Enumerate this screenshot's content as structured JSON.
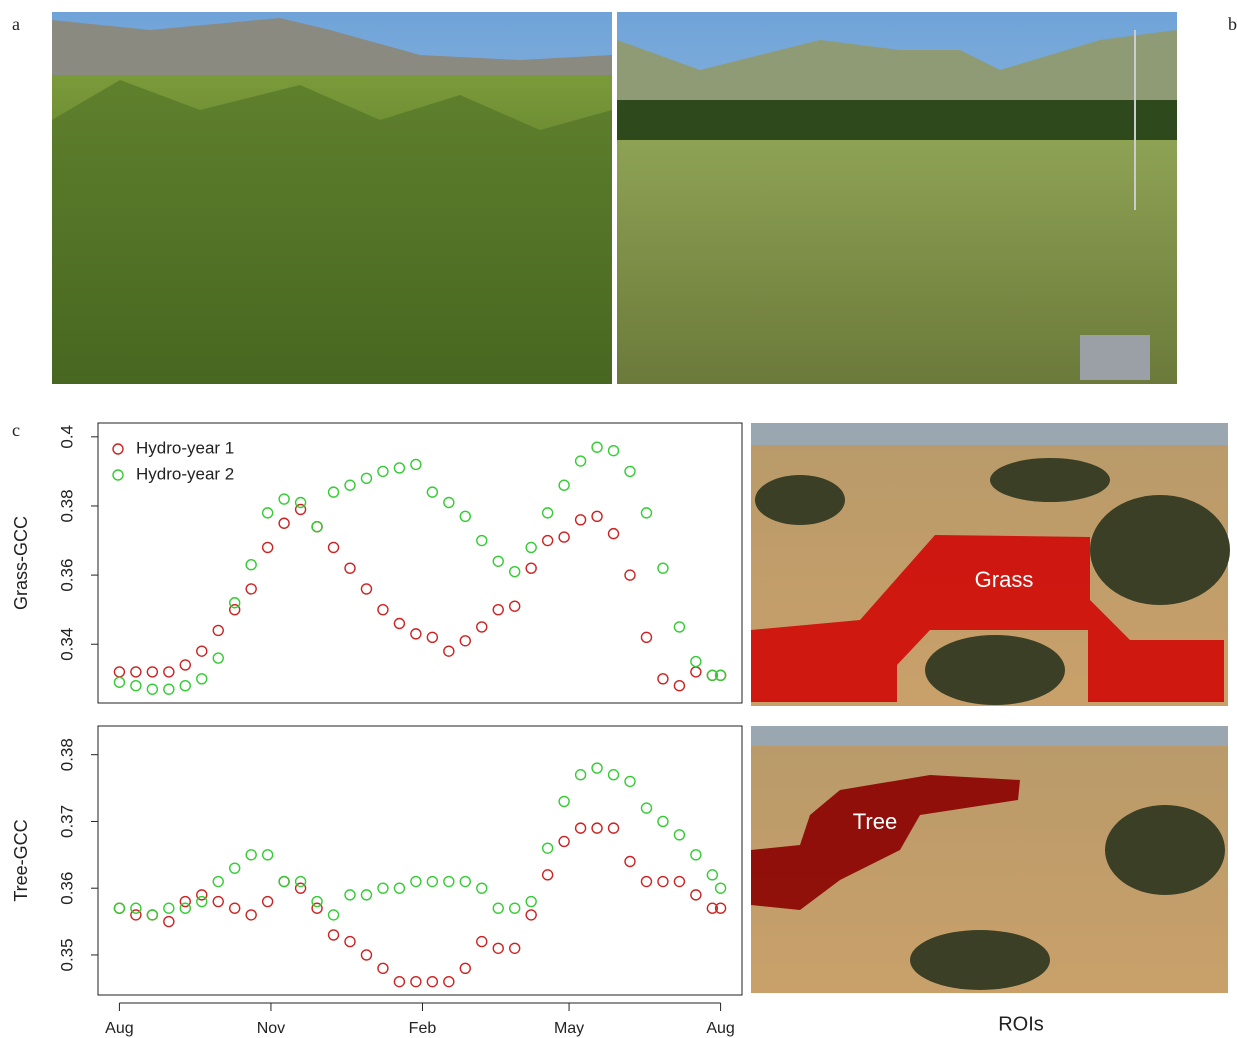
{
  "panels": {
    "labels": [
      "a",
      "b",
      "c"
    ],
    "roi_title": "ROIs",
    "roi_labels": [
      "Grass",
      "Tree"
    ]
  },
  "chart_data": [
    {
      "type": "scatter",
      "ylabel": "Grass-GCC",
      "x": [
        0,
        10,
        20,
        30,
        40,
        50,
        60,
        70,
        80,
        90,
        100,
        110,
        120,
        130,
        140,
        150,
        160,
        170,
        180,
        190,
        200,
        210,
        220,
        230,
        240,
        250,
        260,
        270,
        280,
        290,
        300,
        310,
        320,
        330,
        340,
        350,
        360,
        365
      ],
      "xlim": [
        -13,
        378
      ],
      "ylim": [
        0.323,
        0.404
      ],
      "yticks": [
        0.34,
        0.36,
        0.38,
        0.4
      ],
      "legend": "upper left",
      "series": [
        {
          "name": "Hydro-year 1",
          "color": "#cc2222",
          "values": [
            0.332,
            0.332,
            0.332,
            0.332,
            0.334,
            0.338,
            0.344,
            0.35,
            0.356,
            0.368,
            0.375,
            0.379,
            0.374,
            0.368,
            0.362,
            0.356,
            0.35,
            0.346,
            0.343,
            0.342,
            0.338,
            0.341,
            0.345,
            0.35,
            0.351,
            0.362,
            0.37,
            0.371,
            0.376,
            0.377,
            0.372,
            0.36,
            0.342,
            0.33,
            0.328,
            0.332,
            0.331,
            0.331
          ]
        },
        {
          "name": "Hydro-year 2",
          "color": "#33cc33",
          "values": [
            0.329,
            0.328,
            0.327,
            0.327,
            0.328,
            0.33,
            0.336,
            0.352,
            0.363,
            0.378,
            0.382,
            0.381,
            0.374,
            0.384,
            0.386,
            0.388,
            0.39,
            0.391,
            0.392,
            0.384,
            0.381,
            0.377,
            0.37,
            0.364,
            0.361,
            0.368,
            0.378,
            0.386,
            0.393,
            0.397,
            0.396,
            0.39,
            0.378,
            0.362,
            0.345,
            0.335,
            0.331,
            0.331
          ]
        }
      ]
    },
    {
      "type": "scatter",
      "ylabel": "Tree-GCC",
      "x": [
        0,
        10,
        20,
        30,
        40,
        50,
        60,
        70,
        80,
        90,
        100,
        110,
        120,
        130,
        140,
        150,
        160,
        170,
        180,
        190,
        200,
        210,
        220,
        230,
        240,
        250,
        260,
        270,
        280,
        290,
        300,
        310,
        320,
        330,
        340,
        350,
        360,
        365
      ],
      "xlim": [
        -13,
        378
      ],
      "ylim": [
        0.344,
        0.3843
      ],
      "yticks": [
        0.35,
        0.36,
        0.37,
        0.38
      ],
      "xticks": [
        {
          "value": 0,
          "label": "Aug"
        },
        {
          "value": 92,
          "label": "Nov"
        },
        {
          "value": 184,
          "label": "Feb"
        },
        {
          "value": 273,
          "label": "May"
        },
        {
          "value": 365,
          "label": "Aug"
        }
      ],
      "series": [
        {
          "name": "Hydro-year 1",
          "color": "#cc2222",
          "values": [
            0.357,
            0.356,
            0.356,
            0.355,
            0.358,
            0.359,
            0.358,
            0.357,
            0.356,
            0.358,
            0.361,
            0.36,
            0.357,
            0.353,
            0.352,
            0.35,
            0.348,
            0.346,
            0.346,
            0.346,
            0.346,
            0.348,
            0.352,
            0.351,
            0.351,
            0.356,
            0.362,
            0.367,
            0.369,
            0.369,
            0.369,
            0.364,
            0.361,
            0.361,
            0.361,
            0.359,
            0.357,
            0.357
          ]
        },
        {
          "name": "Hydro-year 2",
          "color": "#33cc33",
          "values": [
            0.357,
            0.357,
            0.356,
            0.357,
            0.357,
            0.358,
            0.361,
            0.363,
            0.365,
            0.365,
            0.361,
            0.361,
            0.358,
            0.356,
            0.359,
            0.359,
            0.36,
            0.36,
            0.361,
            0.361,
            0.361,
            0.361,
            0.36,
            0.357,
            0.357,
            0.358,
            0.366,
            0.373,
            0.377,
            0.378,
            0.377,
            0.376,
            0.372,
            0.37,
            0.368,
            0.365,
            0.362,
            0.36
          ]
        }
      ]
    }
  ]
}
